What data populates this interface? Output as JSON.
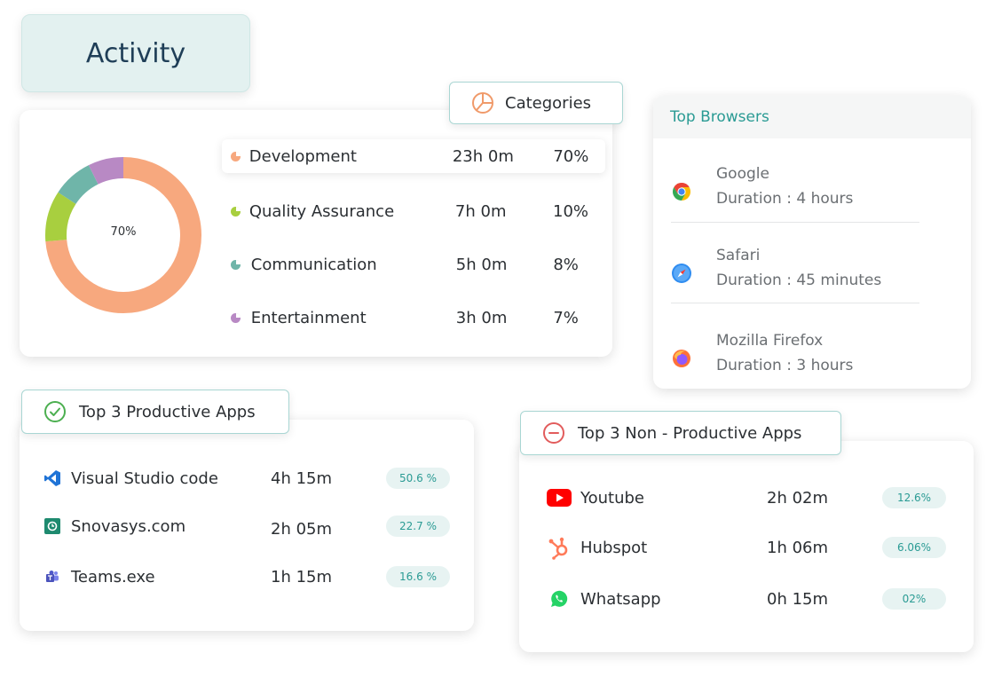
{
  "activity": {
    "title": "Activity"
  },
  "categories": {
    "title": "Categories",
    "center_label": "70%",
    "items": [
      {
        "name": "Development",
        "duration": "23h 0m",
        "percent": "70%",
        "color": "#f7a87e",
        "value": 70
      },
      {
        "name": "Quality Assurance",
        "duration": "7h 0m",
        "percent": "10%",
        "color": "#a8cf3f",
        "value": 10
      },
      {
        "name": "Communication",
        "duration": "5h 0m",
        "percent": "8%",
        "color": "#6fb5a9",
        "value": 8
      },
      {
        "name": "Entertainment",
        "duration": "3h 0m",
        "percent": "7%",
        "color": "#b889c4",
        "value": 7
      }
    ]
  },
  "browsers": {
    "title": "Top Browsers",
    "items": [
      {
        "name": "Google",
        "duration": "Duration : 4 hours",
        "icon": "chrome-icon"
      },
      {
        "name": "Safari",
        "duration": "Duration : 45 minutes",
        "icon": "safari-icon"
      },
      {
        "name": "Mozilla Firefox",
        "duration": "Duration : 3 hours",
        "icon": "firefox-icon"
      }
    ]
  },
  "productive": {
    "title": "Top 3 Productive Apps",
    "items": [
      {
        "name": "Visual Studio code",
        "time": "4h 15m",
        "percent": "50.6 %",
        "icon": "vscode-icon"
      },
      {
        "name": "Snovasys.com",
        "time": "2h 05m",
        "percent": "22.7 %",
        "icon": "snovasys-icon"
      },
      {
        "name": "Teams.exe",
        "time": "1h 15m",
        "percent": "16.6 %",
        "icon": "teams-icon"
      }
    ]
  },
  "non_productive": {
    "title": "Top 3 Non - Productive Apps",
    "items": [
      {
        "name": "Youtube",
        "time": "2h 02m",
        "percent": "12.6%",
        "icon": "youtube-icon"
      },
      {
        "name": "Hubspot",
        "time": "1h 06m",
        "percent": "6.06%",
        "icon": "hubspot-icon"
      },
      {
        "name": "Whatsapp",
        "time": "0h 15m",
        "percent": "02%",
        "icon": "whatsapp-icon"
      }
    ]
  },
  "colors": {
    "accent": "#2a9b94",
    "badge_bg": "#e7f3f2",
    "productive_green": "#4caf50",
    "non_productive_red": "#e25c5c"
  }
}
